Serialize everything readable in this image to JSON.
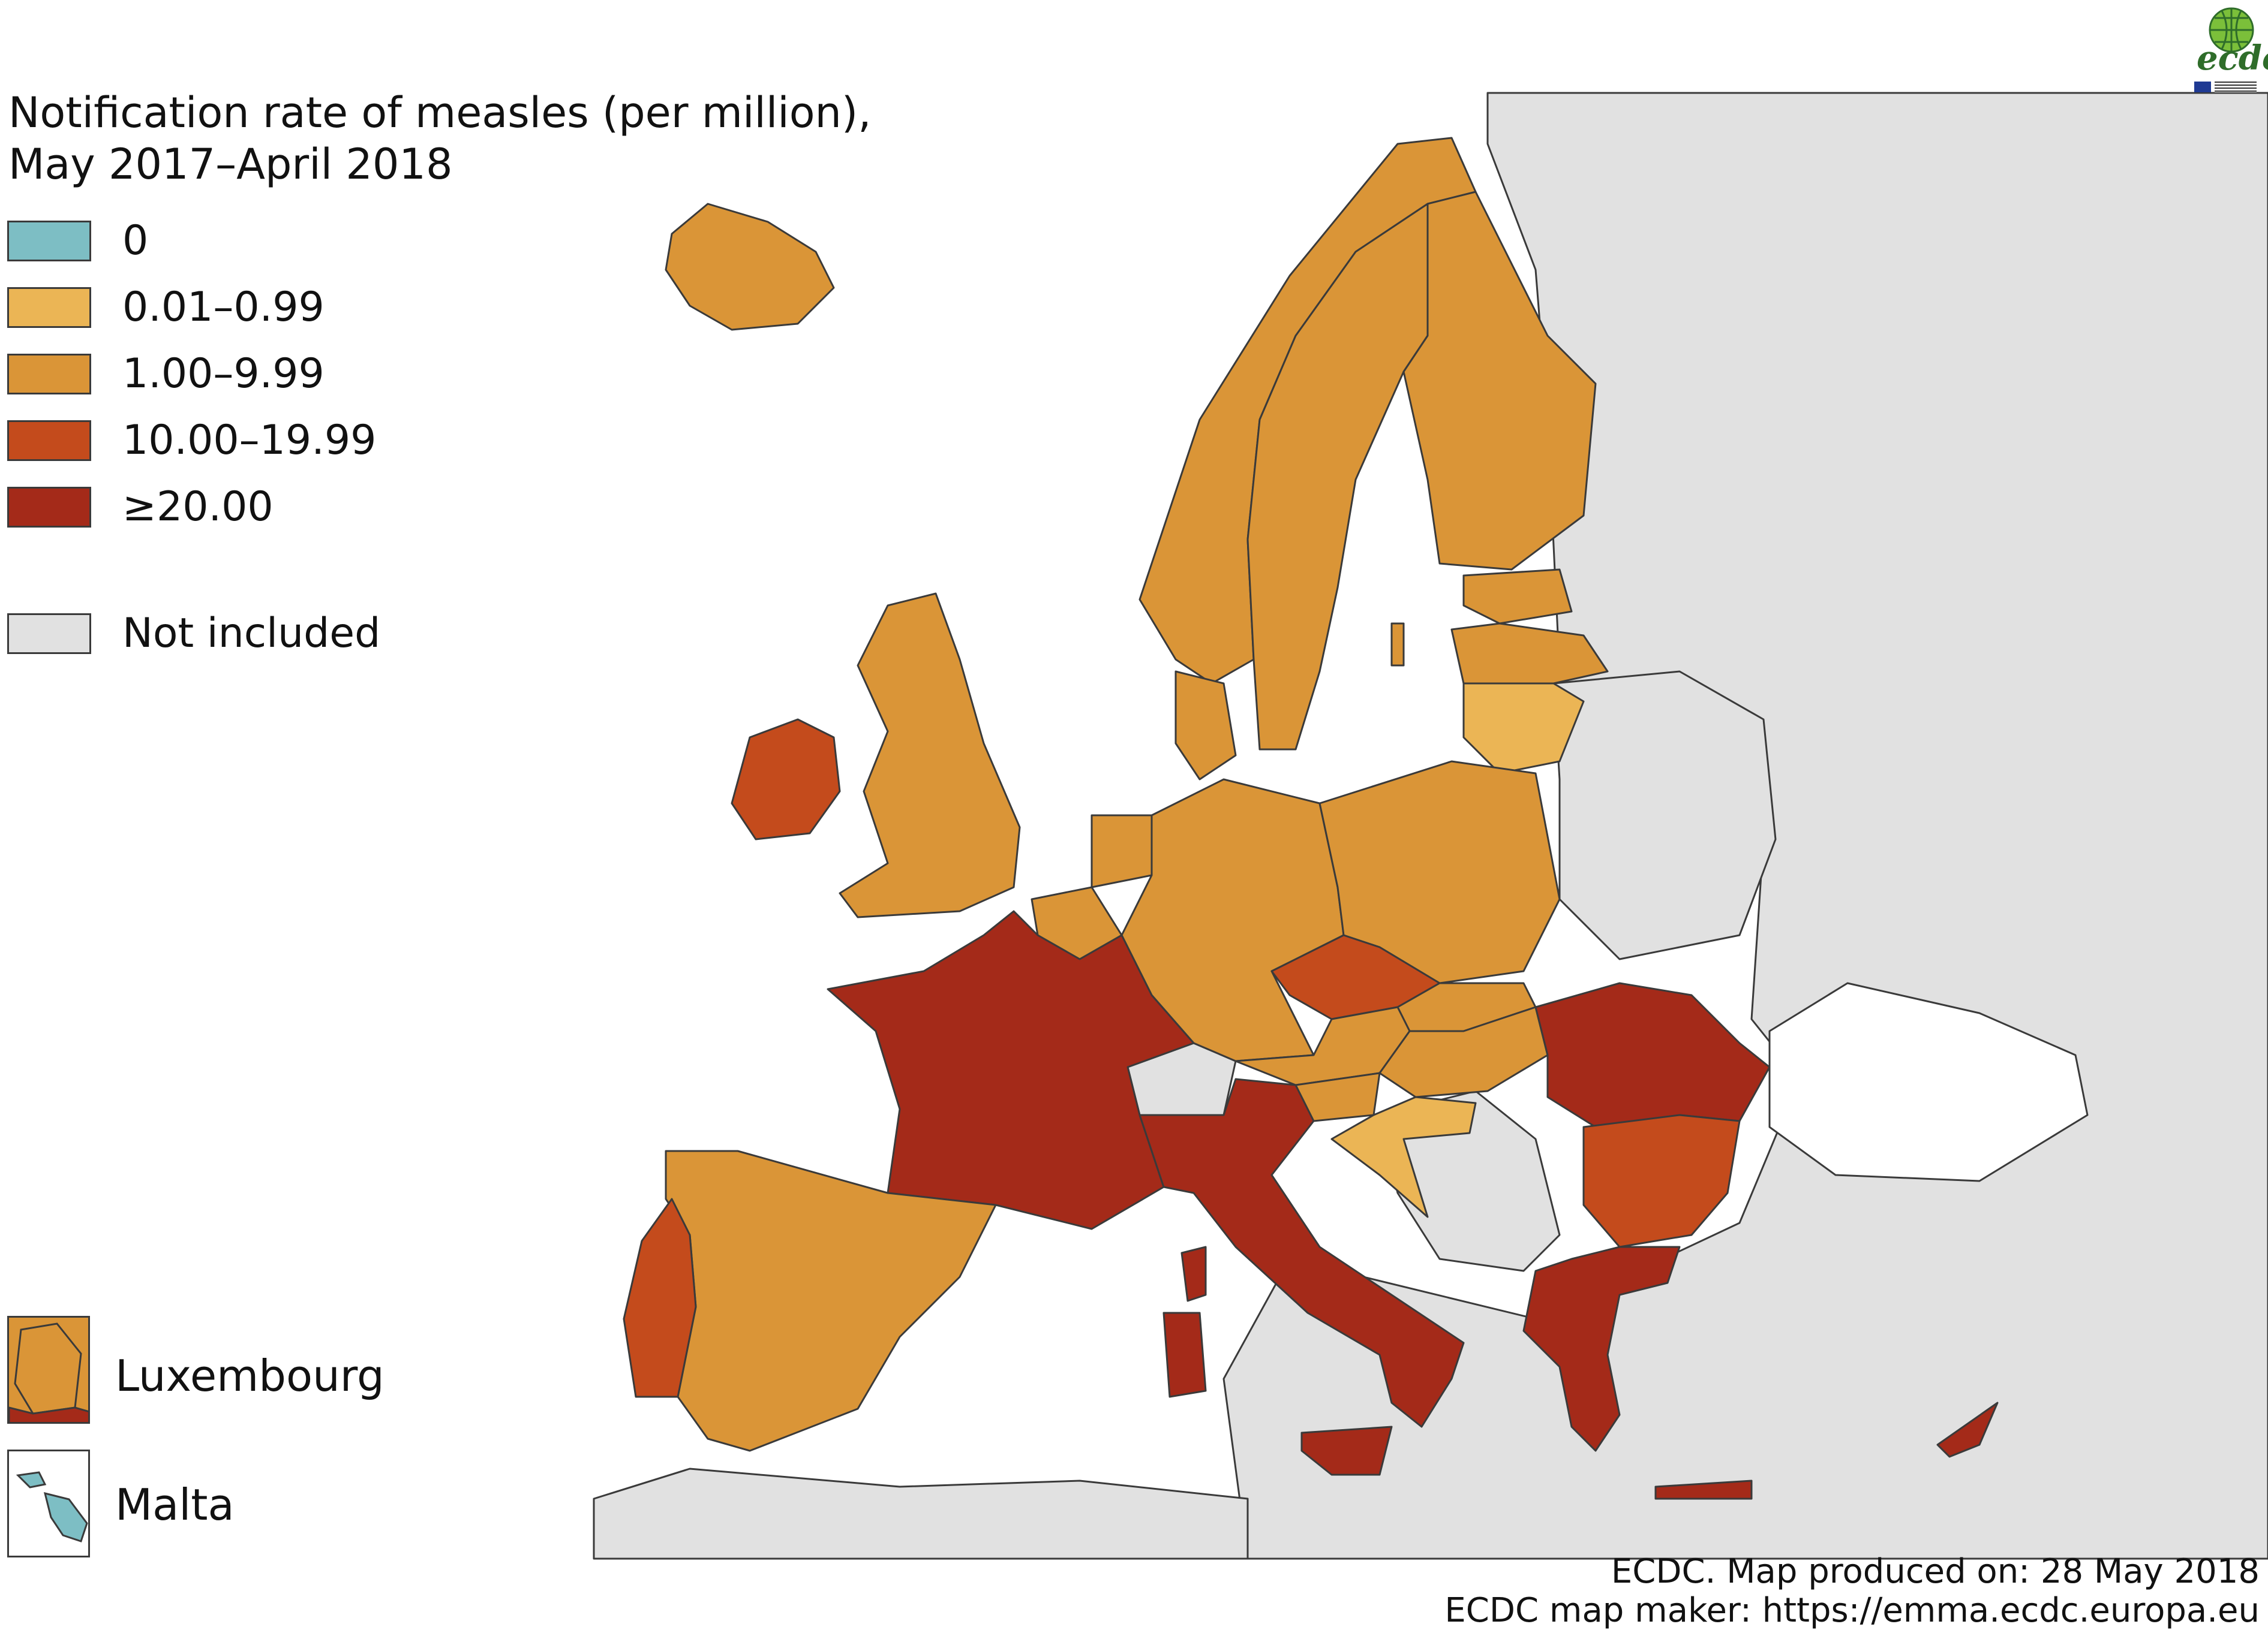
{
  "title_line1": "Notification rate of measles (per million),",
  "title_line2": "May 2017–April 2018",
  "legend": [
    {
      "label": "0",
      "color": "#7dbec4"
    },
    {
      "label": "0.01–0.99",
      "color": "#ebb555"
    },
    {
      "label": "1.00–9.99",
      "color": "#da9537"
    },
    {
      "label": "10.00–19.99",
      "color": "#c44b1c"
    },
    {
      "label": "≥20.00",
      "color": "#a42a19"
    }
  ],
  "not_included": {
    "label": "Not included",
    "color": "#e1e1e1"
  },
  "insets": {
    "luxembourg": "Luxembourg",
    "malta": "Malta"
  },
  "credits": {
    "line1": "ECDC. Map produced on: 28 May 2018",
    "line2": "ECDC map maker: https://emma.ecdc.europa.eu"
  },
  "logo": {
    "text": "ecdc",
    "icon": "globe-icon"
  },
  "countries": [
    {
      "name": "Iceland",
      "class": "1.00–9.99"
    },
    {
      "name": "Ireland",
      "class": "10.00–19.99"
    },
    {
      "name": "United Kingdom",
      "class": "1.00–9.99"
    },
    {
      "name": "Norway",
      "class": "1.00–9.99"
    },
    {
      "name": "Sweden",
      "class": "1.00–9.99"
    },
    {
      "name": "Finland",
      "class": "1.00–9.99"
    },
    {
      "name": "Estonia",
      "class": "1.00–9.99"
    },
    {
      "name": "Latvia",
      "class": "1.00–9.99"
    },
    {
      "name": "Lithuania",
      "class": "0.01–0.99"
    },
    {
      "name": "Denmark",
      "class": "1.00–9.99"
    },
    {
      "name": "Netherlands",
      "class": "1.00–9.99"
    },
    {
      "name": "Belgium",
      "class": "1.00–9.99"
    },
    {
      "name": "Luxembourg",
      "class": "1.00–9.99"
    },
    {
      "name": "Germany",
      "class": "1.00–9.99"
    },
    {
      "name": "Poland",
      "class": "1.00–9.99"
    },
    {
      "name": "Czech Republic",
      "class": "10.00–19.99"
    },
    {
      "name": "Slovakia",
      "class": "1.00–9.99"
    },
    {
      "name": "Austria",
      "class": "1.00–9.99"
    },
    {
      "name": "Hungary",
      "class": "1.00–9.99"
    },
    {
      "name": "Slovenia",
      "class": "1.00–9.99"
    },
    {
      "name": "Croatia",
      "class": "0.01–0.99"
    },
    {
      "name": "France",
      "class": "≥20.00"
    },
    {
      "name": "Italy",
      "class": "≥20.00"
    },
    {
      "name": "Spain",
      "class": "1.00–9.99"
    },
    {
      "name": "Portugal",
      "class": "10.00–19.99"
    },
    {
      "name": "Romania",
      "class": "≥20.00"
    },
    {
      "name": "Bulgaria",
      "class": "10.00–19.99"
    },
    {
      "name": "Greece",
      "class": "≥20.00"
    },
    {
      "name": "Cyprus",
      "class": "≥20.00"
    },
    {
      "name": "Malta",
      "class": "0"
    }
  ]
}
